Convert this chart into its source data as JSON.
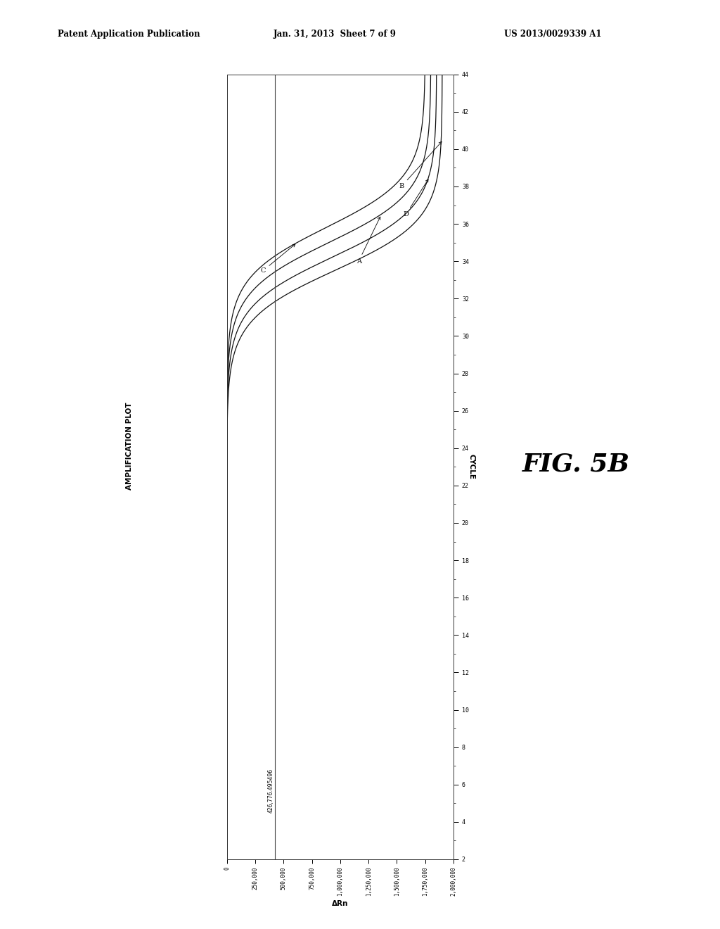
{
  "header_left": "Patent Application Publication",
  "header_center": "Jan. 31, 2013  Sheet 7 of 9",
  "header_right": "US 2013/0029339 A1",
  "fig_label": "FIG. 5B",
  "plot_title": "AMPLIFICATION PLOT",
  "xlabel": "CYCLE",
  "ylabel": "ΔRn",
  "threshold_label": "426,776.495496",
  "x_min": 2,
  "x_max": 44,
  "x_ticks": [
    2,
    4,
    6,
    8,
    10,
    12,
    14,
    16,
    18,
    20,
    22,
    24,
    26,
    28,
    30,
    32,
    34,
    36,
    38,
    40,
    42,
    44
  ],
  "y_min": 0,
  "y_max": 2000000,
  "y_ticks": [
    0,
    250000,
    500000,
    750000,
    1000000,
    1250000,
    1500000,
    1750000,
    2000000
  ],
  "y_tick_labels": [
    "0",
    "250,000",
    "500,000",
    "750,000",
    "1,000,000",
    "1,250,000",
    "1,500,000",
    "1,750,000",
    "2,000,000"
  ],
  "threshold_y": 426776.495496,
  "background_color": "#ffffff",
  "line_color": "#111111"
}
